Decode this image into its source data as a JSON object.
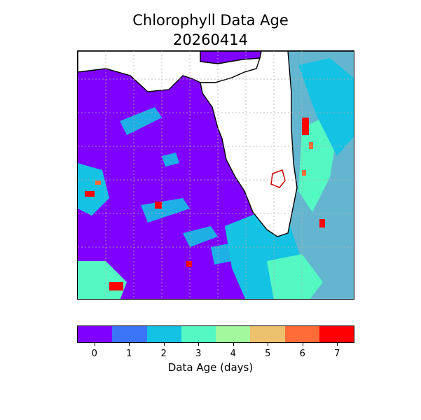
{
  "title": {
    "line1": "Chlorophyll Data Age",
    "line2": "20260414"
  },
  "map": {
    "region": "Florida and eastern Gulf of Mexico",
    "land_color": "#ffffff",
    "coastline_color": "#000000",
    "gridlines": "dotted gray",
    "dominant_value_days": 0
  },
  "colorbar": {
    "label": "Data Age (days)",
    "ticks": [
      "0",
      "1",
      "2",
      "3",
      "4",
      "5",
      "6",
      "7"
    ],
    "colors": [
      "#7f00ff",
      "#3b74f6",
      "#14c2e3",
      "#54f8c2",
      "#a3f89e",
      "#ecc26e",
      "#ff6c38",
      "#ff0000"
    ]
  }
}
